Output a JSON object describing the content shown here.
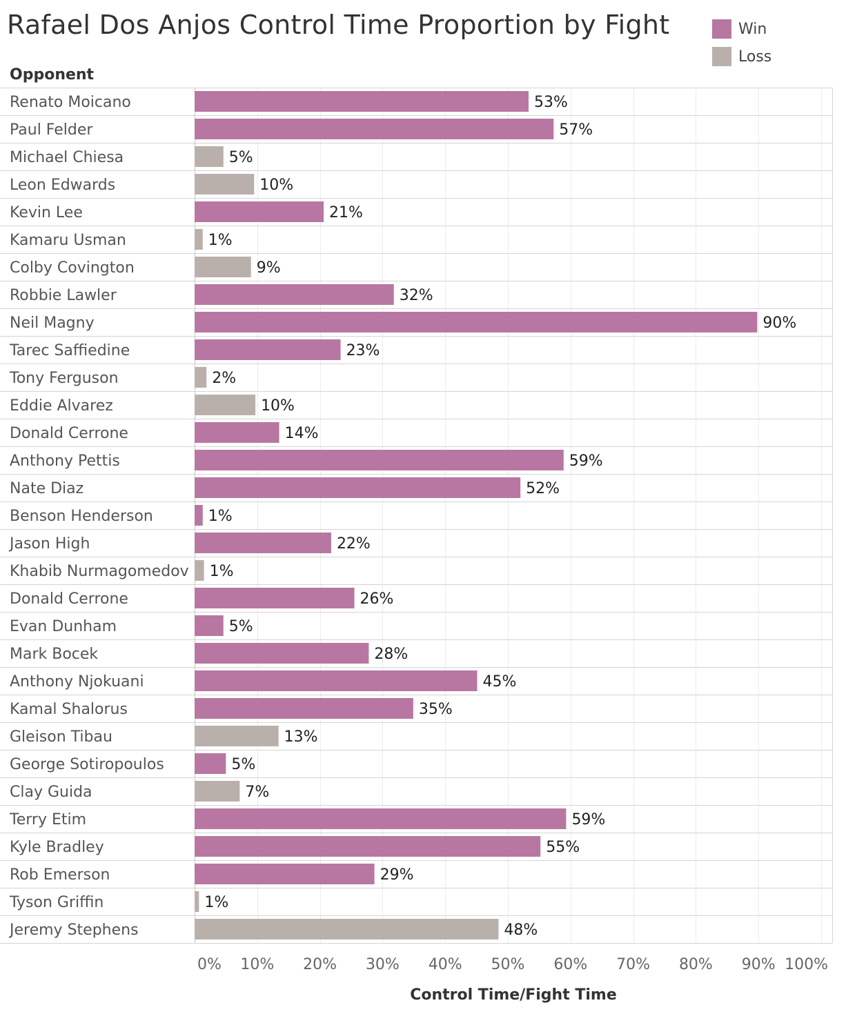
{
  "chart_data": {
    "type": "bar",
    "orientation": "horizontal",
    "title": "Rafael Dos Anjos Control Time Proportion by Fight",
    "row_header": "Opponent",
    "xlabel": "Control Time/Fight Time",
    "xlim": [
      0,
      100
    ],
    "x_ticks": [
      "0%",
      "10%",
      "20%",
      "30%",
      "40%",
      "50%",
      "60%",
      "70%",
      "80%",
      "90%",
      "100%"
    ],
    "grid": true,
    "legend_position": "top-right",
    "legend": [
      {
        "name": "Win",
        "color": "#b877a2"
      },
      {
        "name": "Loss",
        "color": "#bab0ab"
      }
    ],
    "categories": [
      "Renato Moicano",
      "Paul Felder",
      "Michael Chiesa",
      "Leon Edwards",
      "Kevin Lee",
      "Kamaru Usman",
      "Colby Covington",
      "Robbie Lawler",
      "Neil Magny",
      "Tarec Saffiedine",
      "Tony Ferguson",
      "Eddie Alvarez",
      "Donald Cerrone",
      "Anthony Pettis",
      "Nate Diaz",
      "Benson Henderson",
      "Jason High",
      "Khabib Nurmagomedov",
      "Donald Cerrone",
      "Evan Dunham",
      "Mark Bocek",
      "Anthony Njokuani",
      "Kamal Shalorus",
      "Gleison Tibau",
      "George Sotiropoulos",
      "Clay Guida",
      "Terry Etim",
      "Kyle Bradley",
      "Rob Emerson",
      "Tyson Griffin",
      "Jeremy Stephens"
    ],
    "values": [
      53.3,
      57.3,
      4.6,
      9.5,
      20.6,
      1.3,
      9.0,
      31.8,
      89.8,
      23.3,
      1.9,
      9.7,
      13.5,
      58.9,
      52.0,
      1.3,
      21.8,
      1.5,
      25.5,
      4.6,
      27.8,
      45.1,
      34.9,
      13.4,
      5.0,
      7.2,
      59.3,
      55.2,
      28.7,
      0.7,
      48.5
    ],
    "labels": [
      "53%",
      "57%",
      "5%",
      "10%",
      "21%",
      "1%",
      "9%",
      "32%",
      "90%",
      "23%",
      "2%",
      "10%",
      "14%",
      "59%",
      "52%",
      "1%",
      "22%",
      "1%",
      "26%",
      "5%",
      "28%",
      "45%",
      "35%",
      "13%",
      "5%",
      "7%",
      "59%",
      "55%",
      "29%",
      "1%",
      "48%"
    ],
    "results": [
      "Win",
      "Win",
      "Loss",
      "Loss",
      "Win",
      "Loss",
      "Loss",
      "Win",
      "Win",
      "Win",
      "Loss",
      "Loss",
      "Win",
      "Win",
      "Win",
      "Win",
      "Win",
      "Loss",
      "Win",
      "Win",
      "Win",
      "Win",
      "Win",
      "Loss",
      "Win",
      "Loss",
      "Win",
      "Win",
      "Win",
      "Loss",
      "Loss"
    ]
  }
}
